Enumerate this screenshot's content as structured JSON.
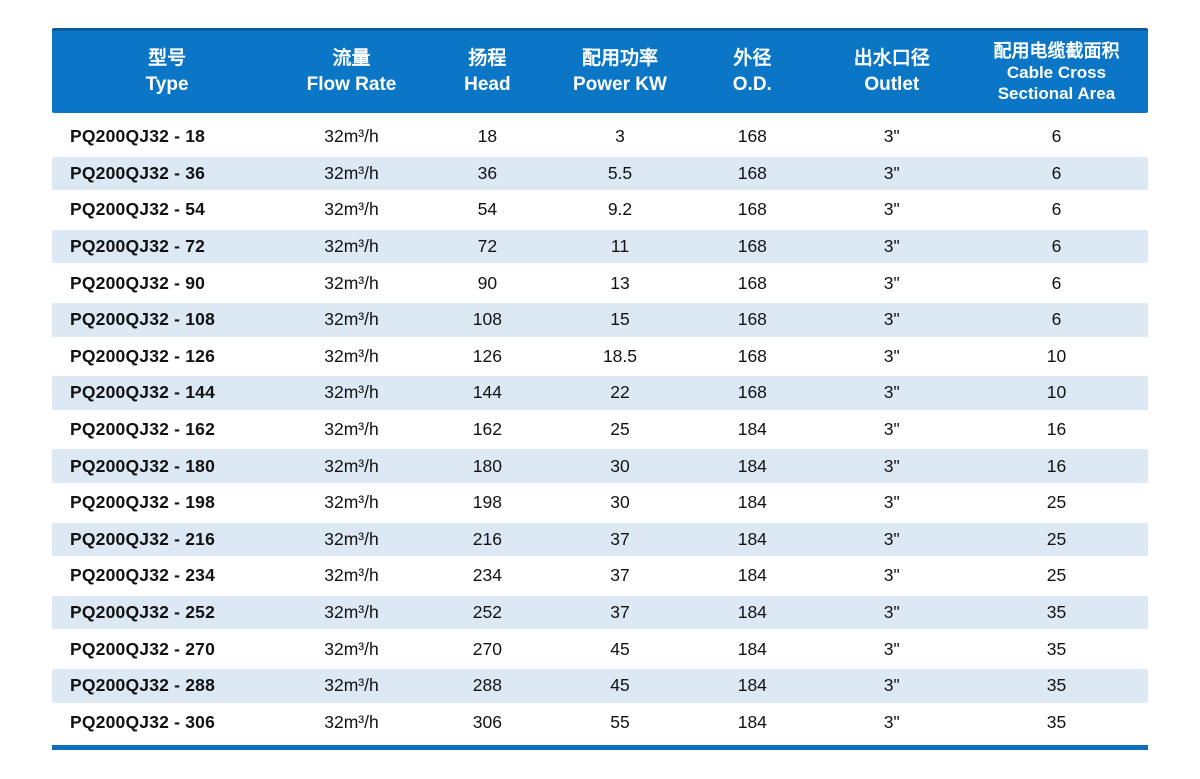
{
  "colors": {
    "header_bg": "#0a76c5",
    "header_top_edge": "#0e5c99",
    "header_text": "#ffffff",
    "row_stripe": "#dce9f5",
    "row_text": "#121212",
    "bottom_bar": "#0b6fbe",
    "page_bg": "#ffffff"
  },
  "table": {
    "columns": [
      {
        "zh": "型号",
        "en": "Type"
      },
      {
        "zh": "流量",
        "en": "Flow Rate"
      },
      {
        "zh": "扬程",
        "en": "Head"
      },
      {
        "zh": "配用功率",
        "en": "Power KW"
      },
      {
        "zh": "外径",
        "en": "O.D."
      },
      {
        "zh": "出水口径",
        "en": "Outlet"
      },
      {
        "zh": "配用电缆截面积",
        "en": "Cable Cross Sectional Area"
      }
    ],
    "rows": [
      [
        "PQ200QJ32 - 18",
        "32m³/h",
        "18",
        "3",
        "168",
        "3\"",
        "6"
      ],
      [
        "PQ200QJ32 - 36",
        "32m³/h",
        "36",
        "5.5",
        "168",
        "3\"",
        "6"
      ],
      [
        "PQ200QJ32 - 54",
        "32m³/h",
        "54",
        "9.2",
        "168",
        "3\"",
        "6"
      ],
      [
        "PQ200QJ32 - 72",
        "32m³/h",
        "72",
        "11",
        "168",
        "3\"",
        "6"
      ],
      [
        "PQ200QJ32 - 90",
        "32m³/h",
        "90",
        "13",
        "168",
        "3\"",
        "6"
      ],
      [
        "PQ200QJ32 - 108",
        "32m³/h",
        "108",
        "15",
        "168",
        "3\"",
        "6"
      ],
      [
        "PQ200QJ32 - 126",
        "32m³/h",
        "126",
        "18.5",
        "168",
        "3\"",
        "10"
      ],
      [
        "PQ200QJ32 - 144",
        "32m³/h",
        "144",
        "22",
        "168",
        "3\"",
        "10"
      ],
      [
        "PQ200QJ32 - 162",
        "32m³/h",
        "162",
        "25",
        "184",
        "3\"",
        "16"
      ],
      [
        "PQ200QJ32 - 180",
        "32m³/h",
        "180",
        "30",
        "184",
        "3\"",
        "16"
      ],
      [
        "PQ200QJ32 - 198",
        "32m³/h",
        "198",
        "30",
        "184",
        "3\"",
        "25"
      ],
      [
        "PQ200QJ32 - 216",
        "32m³/h",
        "216",
        "37",
        "184",
        "3\"",
        "25"
      ],
      [
        "PQ200QJ32 - 234",
        "32m³/h",
        "234",
        "37",
        "184",
        "3\"",
        "25"
      ],
      [
        "PQ200QJ32 - 252",
        "32m³/h",
        "252",
        "37",
        "184",
        "3\"",
        "35"
      ],
      [
        "PQ200QJ32 - 270",
        "32m³/h",
        "270",
        "45",
        "184",
        "3\"",
        "35"
      ],
      [
        "PQ200QJ32 - 288",
        "32m³/h",
        "288",
        "45",
        "184",
        "3\"",
        "35"
      ],
      [
        "PQ200QJ32 - 306",
        "32m³/h",
        "306",
        "55",
        "184",
        "3\"",
        "35"
      ]
    ]
  }
}
